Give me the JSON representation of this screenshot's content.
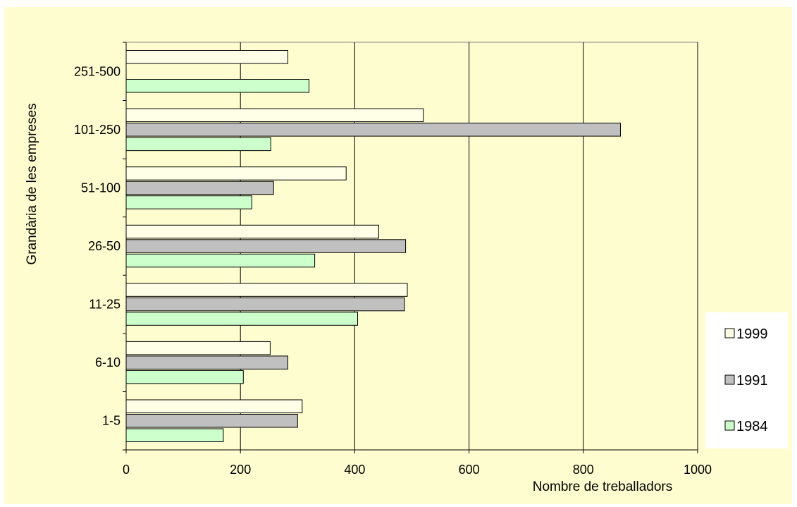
{
  "chart_data": {
    "type": "bar",
    "orientation": "horizontal",
    "title": "",
    "xlabel": "Nombre de treballadors",
    "ylabel": "Grandària de les empreses",
    "xlim": [
      0,
      1000
    ],
    "xticks": [
      0,
      200,
      400,
      600,
      800,
      1000
    ],
    "grid": true,
    "legend_position": "right",
    "categories": [
      "1-5",
      "6-10",
      "11-25",
      "26-50",
      "51-100",
      "101-250",
      "251-500"
    ],
    "series": [
      {
        "name": "1999",
        "color": "#ffffe8",
        "values": [
          308,
          252,
          492,
          442,
          385,
          520,
          283
        ]
      },
      {
        "name": "1991",
        "color": "#c0c0c0",
        "values": [
          300,
          283,
          487,
          489,
          258,
          865,
          null
        ]
      },
      {
        "name": "1984",
        "color": "#ccffcc",
        "values": [
          170,
          205,
          405,
          330,
          220,
          253,
          320
        ]
      }
    ],
    "plot_background": "#fefdd0",
    "plot_border_color": "#808080",
    "gridline_color": "#000000"
  }
}
